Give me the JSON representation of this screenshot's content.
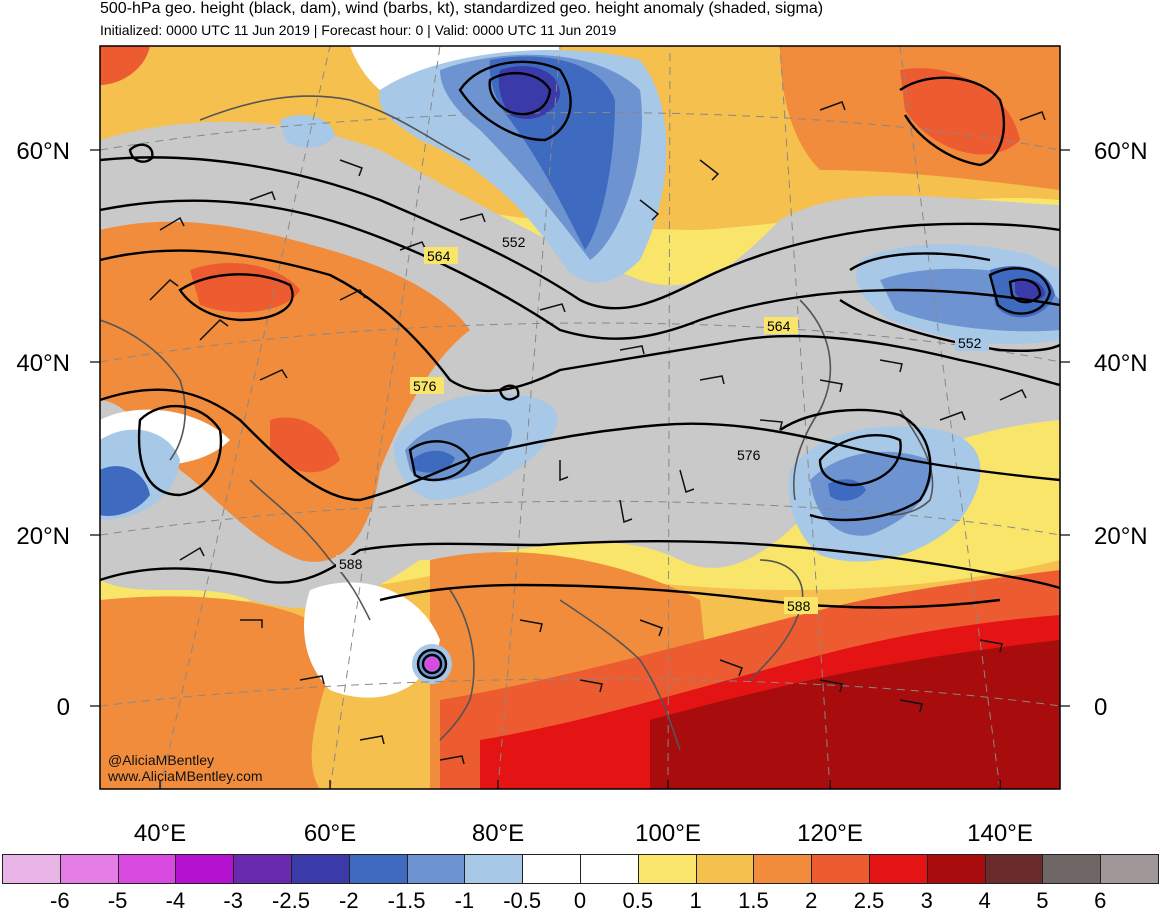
{
  "header": {
    "title": "500-hPa geo. height (black, dam), wind (barbs, kt), standardized geo. height anomaly (shaded, sigma)",
    "subtitle": "Initialized: 0000 UTC 11 Jun 2019 | Forecast hour: 0 | Valid: 0000 UTC 11 Jun 2019"
  },
  "map": {
    "lat_labels": [
      "60°N",
      "40°N",
      "20°N",
      "0"
    ],
    "lon_labels": [
      "40°E",
      "60°E",
      "80°E",
      "100°E",
      "120°E",
      "140°E"
    ],
    "contour_labels": [
      "552",
      "564",
      "576",
      "588",
      "564",
      "552",
      "576",
      "588"
    ],
    "credit_handle": "@AliciaMBentley",
    "credit_site": "www.AliciaMBentley.com"
  },
  "colorbar": {
    "labels": [
      "-6",
      "-5",
      "-4",
      "-3",
      "-2.5",
      "-2",
      "-1.5",
      "-1",
      "-0.5",
      "0",
      "0.5",
      "1",
      "1.5",
      "2",
      "2.5",
      "3",
      "4",
      "5",
      "6"
    ],
    "colors": [
      "#e8b5e6",
      "#e57de6",
      "#d94be0",
      "#b412d0",
      "#6a2ab0",
      "#3a3aa8",
      "#3e6bc0",
      "#6d93d0",
      "#a8c8e8",
      "#ffffff",
      "#ffffff",
      "#f9e56a",
      "#f5c04e",
      "#f08c3c",
      "#ec5c30",
      "#e41414",
      "#a80c0c",
      "#6b2b2b",
      "#706666",
      "#a09898"
    ]
  }
}
